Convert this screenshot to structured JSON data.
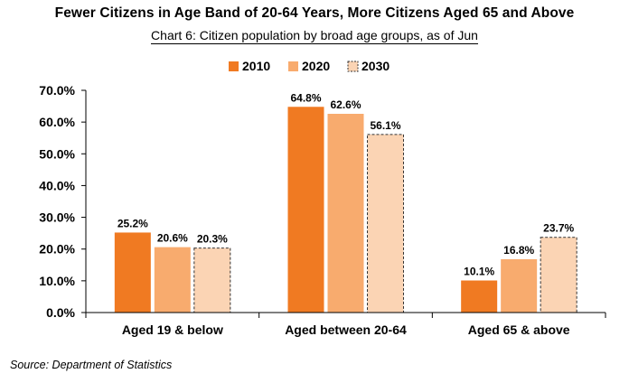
{
  "chart_data": {
    "type": "bar",
    "title": "Fewer Citizens in Age Band of 20-64 Years, More Citizens Aged 65 and Above",
    "subtitle": "Chart 6: Citizen population by broad age groups, as of Jun",
    "categories": [
      "Aged 19 & below",
      "Aged between 20-64",
      "Aged 65 & above"
    ],
    "series": [
      {
        "name": "2010",
        "values": [
          25.2,
          64.8,
          10.1
        ],
        "labels": [
          "25.2%",
          "64.8%",
          "10.1%"
        ],
        "color": "#f07a22",
        "style": "solid"
      },
      {
        "name": "2020",
        "values": [
          20.6,
          62.6,
          16.8
        ],
        "labels": [
          "20.6%",
          "62.6%",
          "16.8%"
        ],
        "color": "#f8ab6e",
        "style": "solid"
      },
      {
        "name": "2030",
        "values": [
          20.3,
          56.1,
          23.7
        ],
        "labels": [
          "20.3%",
          "56.1%",
          "23.7%"
        ],
        "color": "#fbd4b4",
        "style": "dashed-outline"
      }
    ],
    "ylim": [
      0,
      70
    ],
    "yticks": [
      0,
      10,
      20,
      30,
      40,
      50,
      60,
      70
    ],
    "ytick_labels": [
      "0.0%",
      "10.0%",
      "20.0%",
      "30.0%",
      "40.0%",
      "50.0%",
      "60.0%",
      "70.0%"
    ],
    "xlabel": "",
    "ylabel": "",
    "grid": false,
    "legend_position": "top-center"
  },
  "source": "Source: Department of Statistics"
}
